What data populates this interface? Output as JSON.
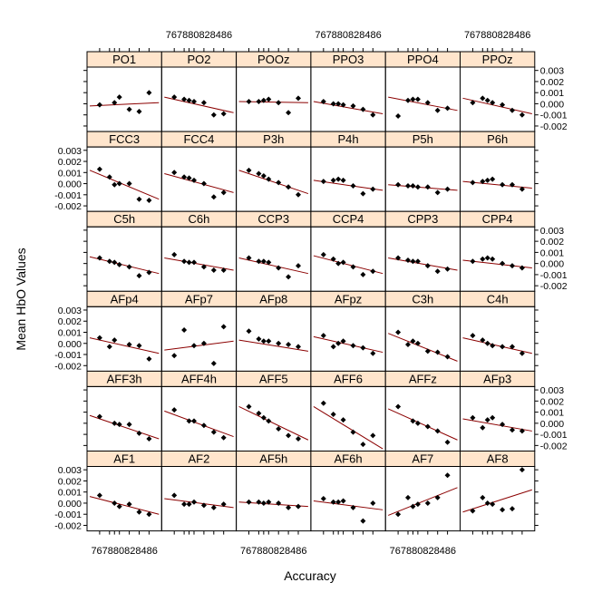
{
  "chart_data": {
    "type": "scatter",
    "layout": "lattice 6x6 trellis",
    "xlabel": "Accuracy",
    "ylabel": "Mean HbO Values",
    "xlim": [
      74,
      88
    ],
    "ylim": [
      -0.0025,
      0.0033
    ],
    "x_tick_label": "767880828486",
    "y_ticks": [
      -0.002,
      -0.001,
      0.0,
      0.001,
      0.002,
      0.003
    ],
    "y_tick_labels": [
      "-0.002",
      "-0.001",
      "0.000",
      "0.001",
      "0.002",
      "0.003"
    ],
    "x": [
      76,
      78,
      79,
      80,
      82,
      84,
      86
    ],
    "strip_color": "#ffe5cc",
    "point_color": "#000000",
    "line_color": "#8b0000",
    "rows": [
      [
        {
          "label": "PO1",
          "y": [
            -0.0001,
            null,
            0.0001,
            0.0006,
            -0.0005,
            -0.0007,
            0.001
          ],
          "fit": [
            -0.0002,
            0.0001
          ]
        },
        {
          "label": "PO2",
          "y": [
            0.0006,
            0.0004,
            0.0003,
            0.0002,
            0.0001,
            -0.001,
            -0.0009
          ],
          "fit": [
            0.0006,
            -0.0008
          ]
        },
        {
          "label": "POOz",
          "y": [
            0.0002,
            0.0002,
            0.0003,
            0.0004,
            0.0001,
            -0.0008,
            0.0005
          ],
          "fit": [
            0.0002,
            0.0001
          ]
        },
        {
          "label": "PPO3",
          "y": [
            0.0002,
            0.0,
            0.0,
            -0.0001,
            -0.0002,
            -0.0005,
            -0.001
          ],
          "fit": [
            0.0002,
            -0.0009
          ]
        },
        {
          "label": "PPO4",
          "y": [
            -0.0011,
            0.0003,
            0.0004,
            0.0004,
            0.0001,
            -0.0006,
            -0.0004
          ],
          "fit": [
            0.0006,
            -0.0006
          ]
        },
        {
          "label": "PPOz",
          "y": [
            0.0001,
            0.0005,
            0.0003,
            0.0001,
            -0.0001,
            -0.0006,
            -0.001
          ],
          "fit": [
            0.0005,
            -0.0009
          ]
        }
      ],
      [
        {
          "label": "FCC3",
          "y": [
            0.0013,
            0.0006,
            -0.0001,
            0.0,
            0.0,
            -0.0014,
            -0.0015
          ],
          "fit": [
            0.0012,
            -0.0014
          ]
        },
        {
          "label": "FCC4",
          "y": [
            0.001,
            0.0006,
            0.0005,
            0.0003,
            0.0,
            -0.0012,
            -0.0008
          ],
          "fit": [
            0.0009,
            -0.0008
          ]
        },
        {
          "label": "P3h",
          "y": [
            0.0012,
            0.0009,
            0.0007,
            0.0004,
            0.0001,
            -0.0003,
            -0.001
          ],
          "fit": [
            0.0012,
            -0.0009
          ]
        },
        {
          "label": "P4h",
          "y": [
            0.0002,
            0.0003,
            0.0004,
            0.0003,
            -0.0002,
            -0.0009,
            -0.0005
          ],
          "fit": [
            0.0003,
            -0.0006
          ]
        },
        {
          "label": "P5h",
          "y": [
            -0.0001,
            -0.0002,
            -0.0002,
            -0.0003,
            -0.0003,
            -0.0008,
            -0.0005
          ],
          "fit": [
            -0.0001,
            -0.0006
          ]
        },
        {
          "label": "P6h",
          "y": [
            0.0001,
            0.0002,
            0.0003,
            0.0004,
            -0.0001,
            -0.0001,
            -0.0005
          ],
          "fit": [
            0.0002,
            -0.0004
          ]
        }
      ],
      [
        {
          "label": "C5h",
          "y": [
            0.0005,
            0.0002,
            0.0001,
            -0.0001,
            -0.0003,
            -0.0011,
            -0.0008
          ],
          "fit": [
            0.0006,
            -0.0009
          ]
        },
        {
          "label": "C6h",
          "y": [
            0.0008,
            0.0002,
            0.0001,
            0.0001,
            -0.0003,
            -0.0006,
            -0.0006
          ],
          "fit": [
            0.0005,
            -0.0006
          ]
        },
        {
          "label": "CCP3",
          "y": [
            0.0005,
            0.0002,
            0.0002,
            0.0001,
            -0.0004,
            -0.0012,
            -0.0002
          ],
          "fit": [
            0.0005,
            -0.0009
          ]
        },
        {
          "label": "CCP4",
          "y": [
            0.0008,
            0.0004,
            0.0,
            0.0001,
            -0.0003,
            -0.001,
            -0.0007
          ],
          "fit": [
            0.0007,
            -0.0009
          ]
        },
        {
          "label": "CPP3",
          "y": [
            0.0005,
            0.0003,
            0.0002,
            0.0002,
            -0.0002,
            -0.0007,
            -0.0005
          ],
          "fit": [
            0.0005,
            -0.0006
          ]
        },
        {
          "label": "CPP4",
          "y": [
            0.0002,
            0.0004,
            0.0005,
            0.0004,
            0.0,
            -0.0002,
            -0.0004
          ],
          "fit": [
            0.0003,
            -0.0004
          ]
        }
      ],
      [
        {
          "label": "AFp4",
          "y": [
            0.0005,
            -0.0003,
            0.0003,
            null,
            -0.0001,
            -0.0002,
            -0.0014
          ],
          "fit": [
            0.0005,
            -0.0009
          ]
        },
        {
          "label": "AFp7",
          "y": [
            -0.0011,
            0.0012,
            null,
            -0.0002,
            0.0,
            -0.0018,
            0.0015
          ],
          "fit": [
            -0.0006,
            0.0002
          ]
        },
        {
          "label": "AFp8",
          "y": [
            0.0011,
            0.0004,
            0.0002,
            0.0002,
            0.0,
            -0.0001,
            -0.0003
          ],
          "fit": [
            0.0003,
            -0.0007
          ]
        },
        {
          "label": "AFpz",
          "y": [
            0.0007,
            -0.0003,
            0.0,
            0.0002,
            -0.0002,
            -0.0004,
            -0.0009
          ],
          "fit": [
            0.0006,
            -0.0008
          ]
        },
        {
          "label": "C3h",
          "y": [
            0.001,
            -0.0001,
            0.0002,
            0.0,
            -0.0007,
            -0.0008,
            -0.0012
          ],
          "fit": [
            0.0009,
            -0.0016
          ]
        },
        {
          "label": "C4h",
          "y": [
            0.0007,
            0.0003,
            0.0,
            -0.0002,
            -0.0003,
            -0.0003,
            -0.0009
          ],
          "fit": [
            0.0005,
            -0.0009
          ]
        }
      ],
      [
        {
          "label": "AFF3h",
          "y": [
            0.0006,
            null,
            0.0,
            -0.0001,
            -0.0001,
            -0.0009,
            -0.0014
          ],
          "fit": [
            0.0007,
            -0.0014
          ]
        },
        {
          "label": "AFF4h",
          "y": [
            0.0012,
            null,
            0.0002,
            0.0002,
            -0.0002,
            -0.0008,
            -0.0013
          ],
          "fit": [
            0.0011,
            -0.0012
          ]
        },
        {
          "label": "AFF5",
          "y": [
            0.0015,
            0.0009,
            0.0005,
            0.0002,
            -0.0005,
            -0.0011,
            -0.0014
          ],
          "fit": [
            0.0015,
            -0.0015
          ]
        },
        {
          "label": "AFF6",
          "y": [
            0.0018,
            0.0008,
            null,
            0.0003,
            -0.0008,
            -0.0019,
            -0.0011
          ],
          "fit": [
            0.0015,
            -0.0023
          ]
        },
        {
          "label": "AFFz",
          "y": [
            0.0015,
            null,
            0.0002,
            0.0,
            -0.0003,
            -0.0007,
            -0.0017
          ],
          "fit": [
            0.0013,
            -0.0015
          ]
        },
        {
          "label": "AFp3",
          "y": [
            0.0005,
            -0.0004,
            0.0003,
            0.0005,
            -0.0001,
            -0.0006,
            -0.0007
          ],
          "fit": [
            0.0004,
            -0.0007
          ]
        }
      ],
      [
        {
          "label": "AF1",
          "y": [
            0.0007,
            null,
            0.0,
            -0.0003,
            -0.0001,
            -0.0008,
            -0.001
          ],
          "fit": [
            0.0006,
            -0.001
          ]
        },
        {
          "label": "AF2",
          "y": [
            0.0007,
            -0.0001,
            -0.0001,
            0.0001,
            -0.0002,
            -0.0004,
            -0.0001
          ],
          "fit": [
            0.0004,
            -0.0004
          ]
        },
        {
          "label": "AF5h",
          "y": [
            0.0001,
            0.0001,
            0.0,
            0.0001,
            0.0,
            -0.0004,
            -0.0003
          ],
          "fit": [
            0.0001,
            -0.0003
          ]
        },
        {
          "label": "AF6h",
          "y": [
            0.0004,
            0.0001,
            0.0001,
            0.0002,
            -0.0004,
            -0.0016,
            0.0
          ],
          "fit": [
            0.0002,
            -0.0006
          ]
        },
        {
          "label": "AF7",
          "y": [
            -0.001,
            0.0005,
            -0.0003,
            -0.0001,
            0.0,
            0.0005,
            0.0025
          ],
          "fit": [
            -0.0011,
            0.0014
          ]
        },
        {
          "label": "AF8",
          "y": [
            -0.0007,
            0.0005,
            0.0,
            -0.0001,
            -0.0006,
            -0.0005,
            0.003
          ],
          "fit": [
            -0.0008,
            0.0012
          ]
        }
      ]
    ]
  }
}
